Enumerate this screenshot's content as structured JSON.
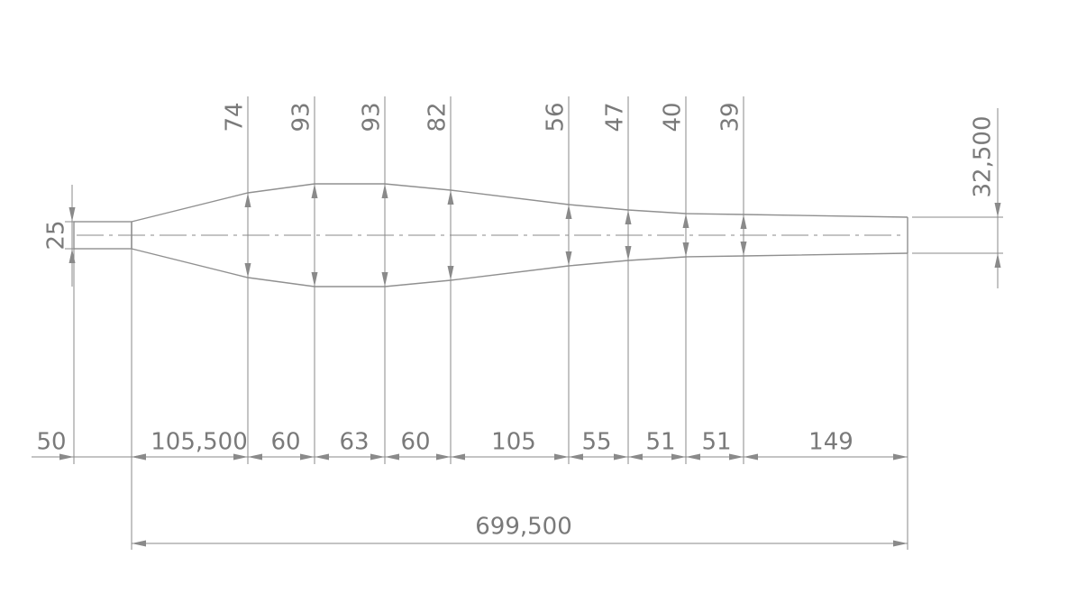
{
  "diameter_dimensions": [
    "74",
    "93",
    "93",
    "82",
    "56",
    "47",
    "40",
    "39"
  ],
  "length_dimensions": [
    "50",
    "105,500",
    "60",
    "63",
    "60",
    "105",
    "55",
    "51",
    "51",
    "149"
  ],
  "overall_length": "699,500",
  "stub_diameter": "25",
  "end_radius": "32,500"
}
